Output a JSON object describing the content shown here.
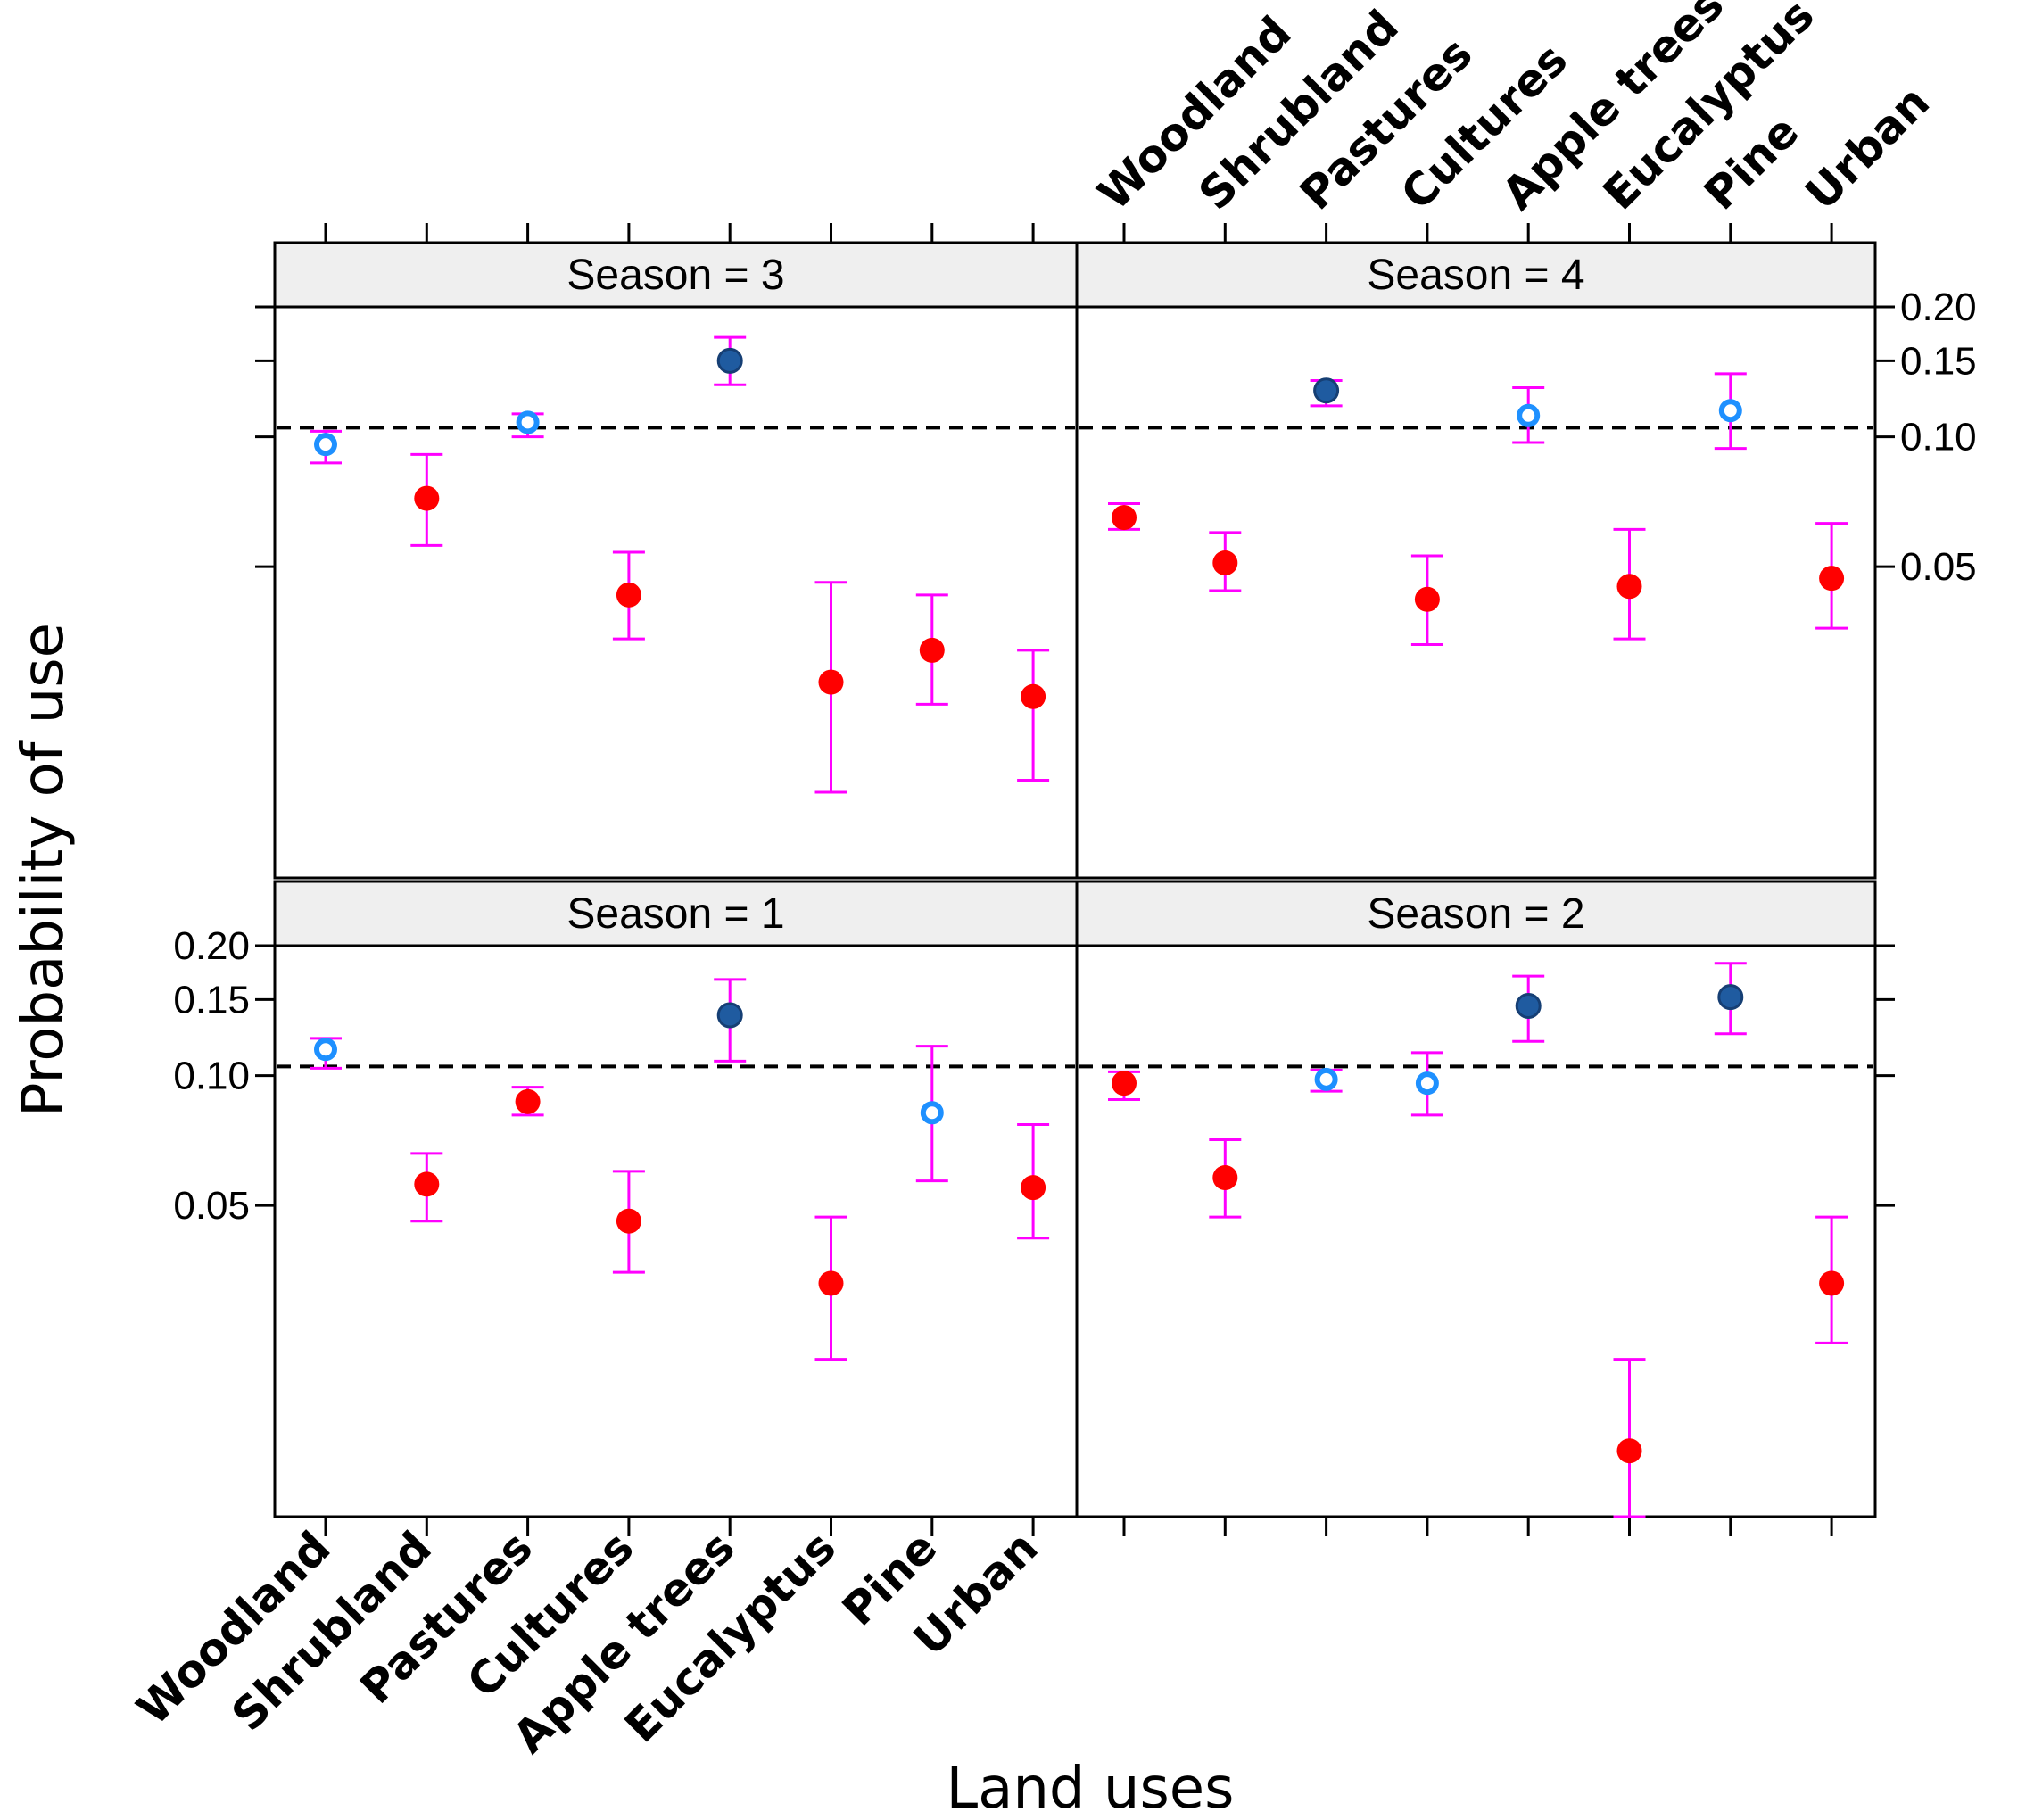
{
  "chart_data": {
    "type": "scatter",
    "subtype": "trellis-point-errorbar",
    "xlabel": "Land uses",
    "ylabel": "Probability of use",
    "y_scale": "log",
    "y_ticks": [
      {
        "value": 0.05,
        "label": "0.05"
      },
      {
        "value": 0.1,
        "label": "0.10"
      },
      {
        "value": 0.15,
        "label": "0.15"
      },
      {
        "value": 0.2,
        "label": "0.20"
      }
    ],
    "ylim": [
      0.0095,
      0.2
    ],
    "reference_line": 0.105,
    "categories": [
      "Woodland",
      "Shrubland",
      "Pastures",
      "Cultures",
      "Apple trees",
      "Eucalyptus",
      "Pine",
      "Urban"
    ],
    "colors": {
      "selected": "#1f5ba0",
      "neutral_fill": "#ffffff",
      "neutral_ring": "#1e90ff",
      "avoided": "#ff0000",
      "errorbar": "#ff00ff",
      "strip_bg": "#efefef",
      "refline": "#000000"
    },
    "panels": [
      {
        "label": "Season = 3",
        "points": [
          {
            "category": "Woodland",
            "value": 0.096,
            "lower": 0.087,
            "upper": 0.103,
            "status": "neutral"
          },
          {
            "category": "Shrubland",
            "value": 0.072,
            "lower": 0.056,
            "upper": 0.091,
            "status": "avoided"
          },
          {
            "category": "Pastures",
            "value": 0.108,
            "lower": 0.1,
            "upper": 0.113,
            "status": "neutral"
          },
          {
            "category": "Cultures",
            "value": 0.043,
            "lower": 0.034,
            "upper": 0.054,
            "status": "avoided"
          },
          {
            "category": "Apple trees",
            "value": 0.15,
            "lower": 0.132,
            "upper": 0.17,
            "status": "selected"
          },
          {
            "category": "Eucalyptus",
            "value": 0.027,
            "lower": 0.015,
            "upper": 0.046,
            "status": "avoided"
          },
          {
            "category": "Pine",
            "value": 0.032,
            "lower": 0.024,
            "upper": 0.043,
            "status": "avoided"
          },
          {
            "category": "Urban",
            "value": 0.025,
            "lower": 0.016,
            "upper": 0.032,
            "status": "avoided"
          }
        ]
      },
      {
        "label": "Season = 4",
        "points": [
          {
            "category": "Woodland",
            "value": 0.065,
            "lower": 0.061,
            "upper": 0.07,
            "status": "avoided"
          },
          {
            "category": "Shrubland",
            "value": 0.051,
            "lower": 0.044,
            "upper": 0.06,
            "status": "avoided"
          },
          {
            "category": "Pastures",
            "value": 0.128,
            "lower": 0.118,
            "upper": 0.135,
            "status": "selected"
          },
          {
            "category": "Cultures",
            "value": 0.042,
            "lower": 0.033,
            "upper": 0.053,
            "status": "avoided"
          },
          {
            "category": "Apple trees",
            "value": 0.112,
            "lower": 0.097,
            "upper": 0.13,
            "status": "neutral"
          },
          {
            "category": "Eucalyptus",
            "value": 0.045,
            "lower": 0.034,
            "upper": 0.061,
            "status": "avoided"
          },
          {
            "category": "Pine",
            "value": 0.115,
            "lower": 0.094,
            "upper": 0.14,
            "status": "neutral"
          },
          {
            "category": "Urban",
            "value": 0.047,
            "lower": 0.036,
            "upper": 0.063,
            "status": "avoided"
          }
        ]
      },
      {
        "label": "Season = 1",
        "points": [
          {
            "category": "Woodland",
            "value": 0.115,
            "lower": 0.104,
            "upper": 0.122,
            "status": "neutral"
          },
          {
            "category": "Shrubland",
            "value": 0.056,
            "lower": 0.046,
            "upper": 0.066,
            "status": "avoided"
          },
          {
            "category": "Pastures",
            "value": 0.087,
            "lower": 0.081,
            "upper": 0.094,
            "status": "avoided"
          },
          {
            "category": "Cultures",
            "value": 0.046,
            "lower": 0.035,
            "upper": 0.06,
            "status": "avoided"
          },
          {
            "category": "Apple trees",
            "value": 0.138,
            "lower": 0.108,
            "upper": 0.167,
            "status": "selected"
          },
          {
            "category": "Eucalyptus",
            "value": 0.033,
            "lower": 0.022,
            "upper": 0.047,
            "status": "avoided"
          },
          {
            "category": "Pine",
            "value": 0.082,
            "lower": 0.057,
            "upper": 0.117,
            "status": "neutral"
          },
          {
            "category": "Urban",
            "value": 0.055,
            "lower": 0.042,
            "upper": 0.077,
            "status": "avoided"
          }
        ]
      },
      {
        "label": "Season = 2",
        "points": [
          {
            "category": "Woodland",
            "value": 0.096,
            "lower": 0.088,
            "upper": 0.102,
            "status": "avoided"
          },
          {
            "category": "Shrubland",
            "value": 0.058,
            "lower": 0.047,
            "upper": 0.071,
            "status": "avoided"
          },
          {
            "category": "Pastures",
            "value": 0.098,
            "lower": 0.092,
            "upper": 0.103,
            "status": "neutral"
          },
          {
            "category": "Cultures",
            "value": 0.096,
            "lower": 0.081,
            "upper": 0.113,
            "status": "neutral"
          },
          {
            "category": "Apple trees",
            "value": 0.145,
            "lower": 0.12,
            "upper": 0.17,
            "status": "selected"
          },
          {
            "category": "Eucalyptus",
            "value": 0.0135,
            "lower": 0.0095,
            "upper": 0.022,
            "status": "avoided"
          },
          {
            "category": "Pine",
            "value": 0.152,
            "lower": 0.125,
            "upper": 0.182,
            "status": "selected"
          },
          {
            "category": "Urban",
            "value": 0.033,
            "lower": 0.024,
            "upper": 0.047,
            "status": "avoided"
          }
        ]
      }
    ]
  }
}
